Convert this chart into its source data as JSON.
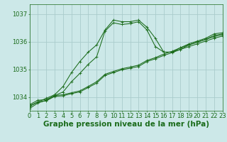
{
  "background_color": "#cce8e8",
  "grid_color": "#aacccc",
  "line_color": "#1a6b1a",
  "xlabel": "Graphe pression niveau de la mer (hPa)",
  "xlim": [
    0,
    23
  ],
  "ylim": [
    1033.5,
    1037.35
  ],
  "yticks": [
    1034,
    1035,
    1036,
    1037
  ],
  "xticks": [
    0,
    1,
    2,
    3,
    4,
    5,
    6,
    7,
    8,
    9,
    10,
    11,
    12,
    13,
    14,
    15,
    16,
    17,
    18,
    19,
    20,
    21,
    22,
    23
  ],
  "line1_x": [
    0,
    1,
    2,
    3,
    4,
    5,
    6,
    7,
    8,
    9,
    10,
    11,
    12,
    13,
    14,
    15,
    16,
    17,
    18,
    19,
    20,
    21,
    22,
    23
  ],
  "line1_y": [
    1033.72,
    1033.88,
    1033.9,
    1034.05,
    1034.08,
    1034.15,
    1034.22,
    1034.38,
    1034.55,
    1034.82,
    1034.92,
    1035.02,
    1035.08,
    1035.15,
    1035.32,
    1035.42,
    1035.55,
    1035.65,
    1035.78,
    1035.88,
    1035.98,
    1036.08,
    1036.18,
    1036.25
  ],
  "line2_x": [
    0,
    1,
    2,
    3,
    4,
    5,
    6,
    7,
    8,
    9,
    10,
    11,
    12,
    13,
    14,
    15,
    16,
    17,
    18,
    19,
    20,
    21,
    22,
    23
  ],
  "line2_y": [
    1033.68,
    1033.82,
    1033.86,
    1034.02,
    1034.04,
    1034.12,
    1034.18,
    1034.34,
    1034.5,
    1034.78,
    1034.88,
    1034.98,
    1035.04,
    1035.1,
    1035.28,
    1035.38,
    1035.5,
    1035.6,
    1035.72,
    1035.82,
    1035.92,
    1036.02,
    1036.12,
    1036.2
  ],
  "line3_x": [
    0,
    1,
    2,
    3,
    4,
    5,
    6,
    7,
    8,
    9,
    10,
    11,
    12,
    13,
    14,
    15,
    16,
    17,
    18,
    19,
    20,
    21,
    22,
    23
  ],
  "line3_y": [
    1033.65,
    1033.82,
    1033.95,
    1034.08,
    1034.38,
    1034.88,
    1035.28,
    1035.62,
    1035.88,
    1036.42,
    1036.78,
    1036.72,
    1036.72,
    1036.78,
    1036.52,
    1036.12,
    1035.62,
    1035.62,
    1035.72,
    1035.88,
    1035.98,
    1036.08,
    1036.22,
    1036.28
  ],
  "line4_x": [
    0,
    1,
    2,
    3,
    4,
    5,
    6,
    7,
    8,
    9,
    10,
    11,
    12,
    13,
    14,
    15,
    16,
    17,
    18,
    19,
    20,
    21,
    22,
    23
  ],
  "line4_y": [
    1033.58,
    1033.78,
    1033.88,
    1034.05,
    1034.18,
    1034.55,
    1034.85,
    1035.18,
    1035.45,
    1036.38,
    1036.68,
    1036.62,
    1036.65,
    1036.72,
    1036.42,
    1035.82,
    1035.62,
    1035.62,
    1035.78,
    1035.92,
    1036.02,
    1036.12,
    1036.28,
    1036.32
  ],
  "title_fontsize": 7.5,
  "tick_fontsize": 6.0
}
